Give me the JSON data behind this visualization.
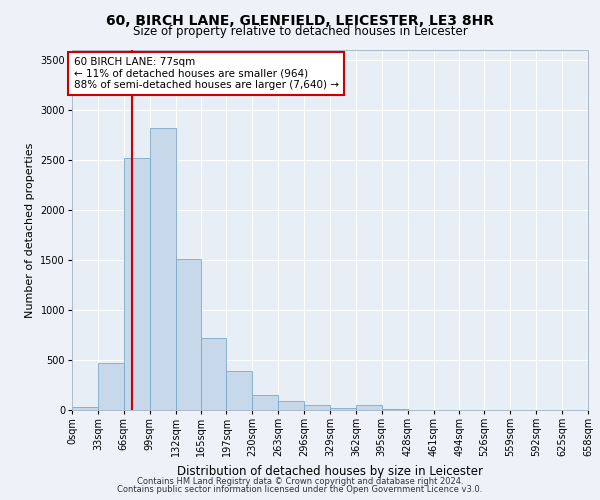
{
  "title1": "60, BIRCH LANE, GLENFIELD, LEICESTER, LE3 8HR",
  "title2": "Size of property relative to detached houses in Leicester",
  "xlabel": "Distribution of detached houses by size in Leicester",
  "ylabel": "Number of detached properties",
  "bar_color": "#c8d8eb",
  "bar_edge_color": "#7aaac8",
  "background_color": "#e8eef5",
  "grid_color": "#ffffff",
  "annotation_box_color": "#cc0000",
  "vline_color": "#cc0000",
  "vline_x": 77,
  "annotation_text": "60 BIRCH LANE: 77sqm\n← 11% of detached houses are smaller (964)\n88% of semi-detached houses are larger (7,640) →",
  "bins": [
    0,
    33,
    66,
    99,
    132,
    165,
    197,
    230,
    263,
    296,
    329,
    362,
    395,
    428,
    461,
    494,
    526,
    559,
    592,
    625,
    658
  ],
  "bin_labels": [
    "0sqm",
    "33sqm",
    "66sqm",
    "99sqm",
    "132sqm",
    "165sqm",
    "197sqm",
    "230sqm",
    "263sqm",
    "296sqm",
    "329sqm",
    "362sqm",
    "395sqm",
    "428sqm",
    "461sqm",
    "494sqm",
    "526sqm",
    "559sqm",
    "592sqm",
    "625sqm",
    "658sqm"
  ],
  "values": [
    30,
    470,
    2520,
    2820,
    1510,
    720,
    395,
    155,
    90,
    55,
    25,
    50,
    10,
    0,
    0,
    0,
    0,
    0,
    0,
    0
  ],
  "ylim": [
    0,
    3600
  ],
  "yticks": [
    0,
    500,
    1000,
    1500,
    2000,
    2500,
    3000,
    3500
  ],
  "footer1": "Contains HM Land Registry data © Crown copyright and database right 2024.",
  "footer2": "Contains public sector information licensed under the Open Government Licence v3.0.",
  "title1_fontsize": 10,
  "title2_fontsize": 8.5,
  "ylabel_fontsize": 8,
  "xlabel_fontsize": 8.5,
  "tick_fontsize": 7,
  "footer_fontsize": 6.0,
  "annotation_fontsize": 7.5
}
